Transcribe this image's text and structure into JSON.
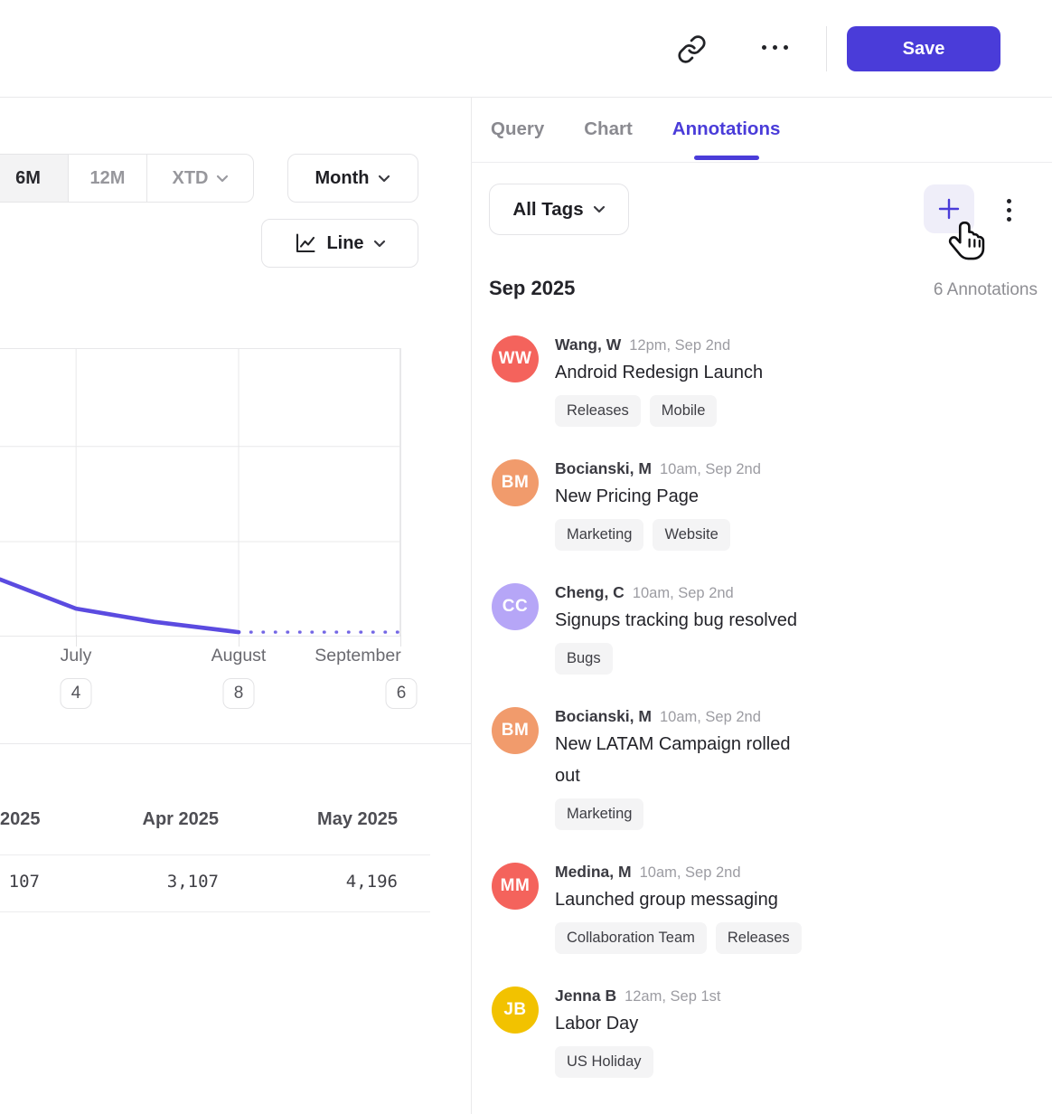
{
  "theme": {
    "accent_color": "#4A3CD9"
  },
  "header": {
    "save_button": "Save"
  },
  "tabs": {
    "items": [
      {
        "label": "Query"
      },
      {
        "label": "Chart"
      },
      {
        "label": "Annotations"
      }
    ],
    "active": "Annotations"
  },
  "left_panel": {
    "range_selector": {
      "options": [
        "6M",
        "12M",
        "XTD"
      ],
      "selected": "6M"
    },
    "interval_button": {
      "label": "Month"
    },
    "chart_type_button": {
      "label": "Line"
    }
  },
  "chart_data": {
    "type": "line",
    "title": "",
    "xlabel": "",
    "ylabel": "",
    "y_axis_labels_visible": false,
    "grid": true,
    "line_color": "#5B4BE0",
    "x_tick_labels": [
      "July",
      "August",
      "September"
    ],
    "x_tick_badges": [
      "4",
      "8",
      "6"
    ],
    "x_gridlines_pct": [
      19,
      59.6,
      100
    ],
    "y_gridlines_pct": [
      34,
      67.2
    ],
    "series": [
      {
        "name": "actual",
        "style": "solid",
        "points": [
          {
            "x_pct": 0,
            "y_pct": 19.0
          },
          {
            "x_pct": 19,
            "y_pct": 8.8
          },
          {
            "x_pct": 38.5,
            "y_pct": 4.2
          },
          {
            "x_pct": 59.6,
            "y_pct": 0.6
          }
        ]
      },
      {
        "name": "projection",
        "style": "dotted",
        "points": [
          {
            "x_pct": 59.6,
            "y_pct": 0.6
          },
          {
            "x_pct": 100,
            "y_pct": 0.6
          }
        ]
      }
    ]
  },
  "table": {
    "columns": [
      "2025",
      "Apr 2025",
      "May 2025"
    ],
    "values": [
      "107",
      "3,107",
      "4,196"
    ]
  },
  "annotations_panel": {
    "filter_button": "All Tags",
    "month_header": "Sep 2025",
    "count_label": "6 Annotations",
    "items": [
      {
        "initials": "WW",
        "avatar_color": "#F4635C",
        "name": "Wang, W",
        "time": "12pm, Sep 2nd",
        "title": "Android Redesign Launch",
        "tags": [
          "Releases",
          "Mobile"
        ]
      },
      {
        "initials": "BM",
        "avatar_color": "#F19B6C",
        "name": "Bocianski, M",
        "time": "10am, Sep 2nd",
        "title": "New Pricing Page",
        "tags": [
          "Marketing",
          "Website"
        ]
      },
      {
        "initials": "CC",
        "avatar_color": "#B6A6F7",
        "name": "Cheng, C",
        "time": "10am, Sep 2nd",
        "title": "Signups tracking bug resolved",
        "tags": [
          "Bugs"
        ]
      },
      {
        "initials": "BM",
        "avatar_color": "#F19B6C",
        "name": "Bocianski, M",
        "time": "10am, Sep 2nd",
        "title": "New LATAM Campaign rolled\nout",
        "tags": [
          "Marketing"
        ]
      },
      {
        "initials": "MM",
        "avatar_color": "#F4635C",
        "name": "Medina, M",
        "time": "10am, Sep 2nd",
        "title": "Launched group messaging",
        "tags": [
          "Collaboration Team",
          "Releases"
        ]
      },
      {
        "initials": "JB",
        "avatar_color": "#F2C200",
        "name": "Jenna B",
        "time": "12am, Sep 1st",
        "title": "Labor Day",
        "tags": [
          "US Holiday"
        ]
      }
    ]
  }
}
